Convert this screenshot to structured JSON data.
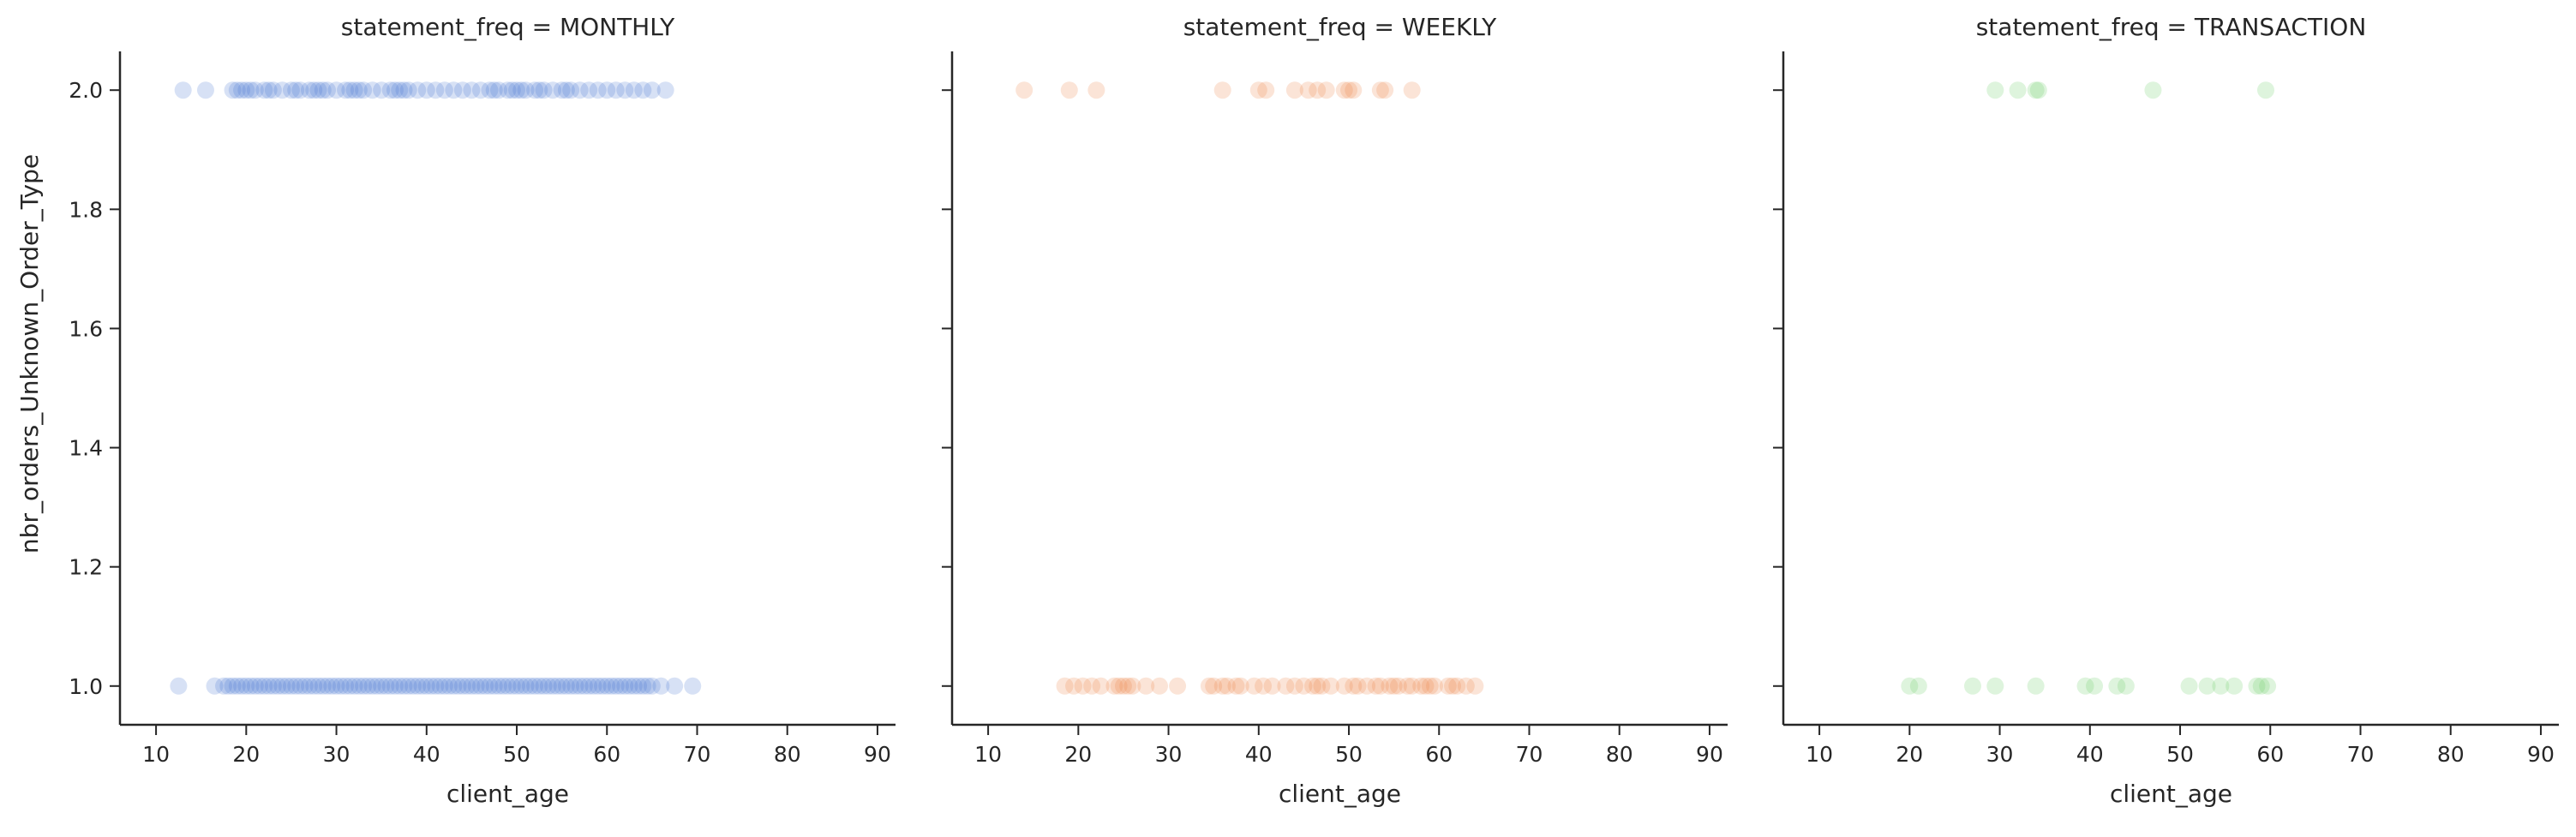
{
  "chart_data": {
    "type": "scatter",
    "xlabel": "client_age",
    "ylabel": "nbr_orders_Unknown_Order_Type",
    "xlim": [
      6,
      92
    ],
    "ylim": [
      0.935,
      2.065
    ],
    "xticks": [
      "10",
      "20",
      "30",
      "40",
      "50",
      "60",
      "70",
      "80",
      "90"
    ],
    "yticks": [
      "1.0",
      "1.2",
      "1.4",
      "1.6",
      "1.8",
      "2.0"
    ],
    "shared_y": true,
    "grid": false,
    "panels": [
      {
        "title": "statement_freq = MONTHLY",
        "color": "#4878d0",
        "points": {
          "2.0": [
            13,
            15.5,
            18.5,
            19,
            19.5,
            20,
            20.5,
            21,
            22,
            22.5,
            23,
            24,
            25,
            25.5,
            26,
            27,
            27.5,
            28,
            28.5,
            29,
            30,
            31,
            31.5,
            32,
            32.5,
            33,
            34,
            35,
            36,
            36.5,
            37,
            37.5,
            38,
            39,
            40,
            41,
            42,
            43,
            44,
            45,
            46,
            47,
            47.5,
            48,
            49,
            49.5,
            50,
            50.5,
            51,
            52,
            52.5,
            53,
            54,
            55,
            55.5,
            56,
            57,
            58,
            59,
            60,
            61,
            62,
            63,
            64,
            65,
            66.5
          ],
          "1.0": [
            12.5,
            16.5,
            17.5,
            18,
            18.5,
            19,
            19.5,
            20,
            20.5,
            21,
            21.5,
            22,
            22.5,
            23,
            23.5,
            24,
            24.5,
            25,
            25.5,
            26,
            26.5,
            27,
            27.5,
            28,
            28.5,
            29,
            29.5,
            30,
            30.5,
            31,
            31.5,
            32,
            32.5,
            33,
            33.5,
            34,
            34.5,
            35,
            35.5,
            36,
            36.5,
            37,
            37.5,
            38,
            38.5,
            39,
            39.5,
            40,
            40.5,
            41,
            41.5,
            42,
            42.5,
            43,
            43.5,
            44,
            44.5,
            45,
            45.5,
            46,
            46.5,
            47,
            47.5,
            48,
            48.5,
            49,
            49.5,
            50,
            50.5,
            51,
            51.5,
            52,
            52.5,
            53,
            53.5,
            54,
            54.5,
            55,
            55.5,
            56,
            56.5,
            57,
            57.5,
            58,
            58.5,
            59,
            59.5,
            60,
            60.5,
            61,
            61.5,
            62,
            62.5,
            63,
            63.5,
            64,
            64.5,
            65,
            66,
            67.5,
            69.5
          ]
        }
      },
      {
        "title": "statement_freq = WEEKLY",
        "color": "#ee854a",
        "points": {
          "2.0": [
            14,
            19,
            22,
            36,
            40,
            40.8,
            44,
            45.5,
            46.5,
            47.5,
            49.5,
            50,
            50.5,
            53.5,
            54,
            57
          ],
          "1.0": [
            18.5,
            19.5,
            20.5,
            21.5,
            22.5,
            24,
            24.5,
            25,
            25.5,
            26,
            27.5,
            29,
            31,
            34.5,
            35,
            36,
            36.5,
            37.5,
            38,
            39.5,
            40.5,
            41.5,
            43,
            44,
            45,
            46,
            46.5,
            47,
            48,
            49.5,
            50.5,
            51,
            52,
            53,
            53.5,
            54.5,
            55,
            55.5,
            56.5,
            57,
            58,
            58.5,
            59,
            59.5,
            61,
            61.5,
            62,
            63,
            64
          ]
        }
      },
      {
        "title": "statement_freq = TRANSACTION",
        "color": "#6acc64",
        "points": {
          "2.0": [
            29.5,
            32,
            34,
            34.3,
            47,
            59.5
          ],
          "1.0": [
            20,
            21,
            27,
            29.5,
            34,
            39.5,
            40.5,
            43,
            44,
            51,
            53,
            54.5,
            56,
            58.5,
            59,
            59.7
          ]
        }
      }
    ]
  }
}
